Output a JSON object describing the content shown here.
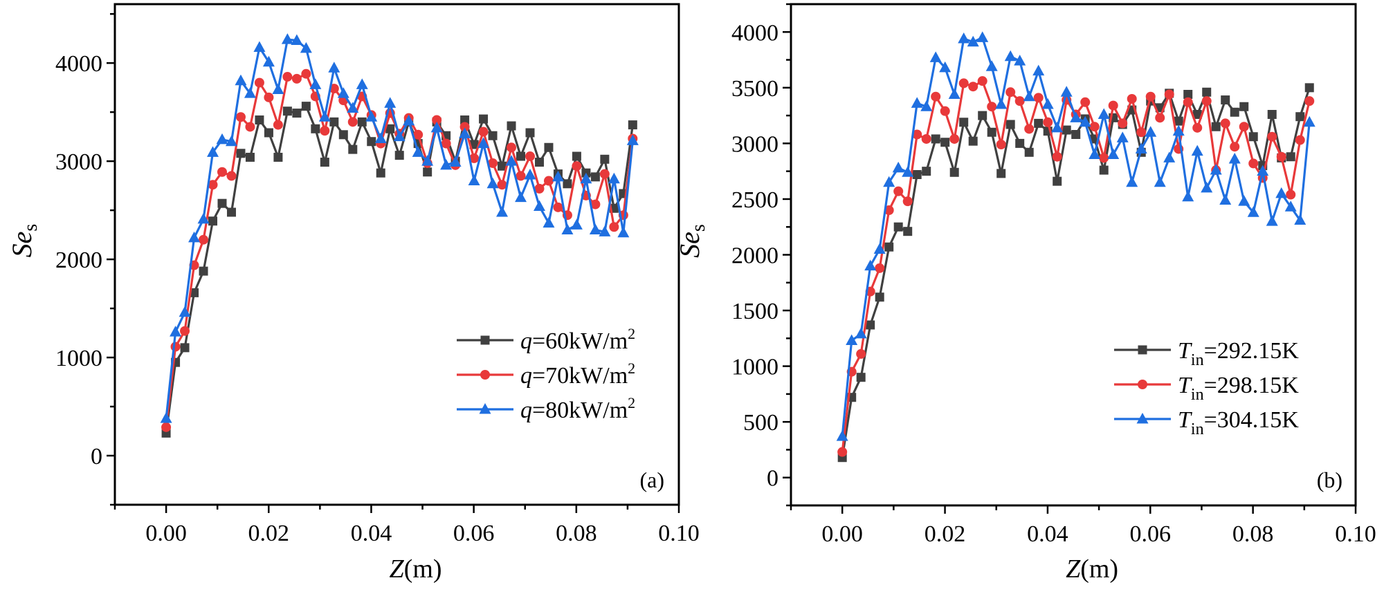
{
  "figure": {
    "panels": [
      "(a)",
      "(b)"
    ]
  },
  "chart_data": [
    {
      "type": "line",
      "panel_label": "(a)",
      "title": "",
      "xlabel": "Z(m)",
      "xlabel_parts": {
        "var": "Z",
        "unit": "(m)"
      },
      "ylabel": "Se_s",
      "ylabel_parts": {
        "var": "Se",
        "sub": "s"
      },
      "xlim": [
        -0.01,
        0.1
      ],
      "ylim": [
        -500,
        4600
      ],
      "xticks": [
        0.0,
        0.02,
        0.04,
        0.06,
        0.08,
        0.1
      ],
      "xtick_labels": [
        "0.00",
        "0.02",
        "0.04",
        "0.06",
        "0.08",
        "0.10"
      ],
      "yticks": [
        0,
        1000,
        2000,
        3000,
        4000
      ],
      "ytick_labels": [
        "0",
        "1000",
        "2000",
        "3000",
        "4000"
      ],
      "grid": false,
      "legend_position": "lower-right",
      "x_step": 0.00182,
      "series": [
        {
          "name": "q=60kW/m2",
          "legend": {
            "var": "q",
            "text": "=60kW/m",
            "sup": "2"
          },
          "color": "#404040",
          "marker": "square",
          "values": [
            230,
            950,
            1100,
            1660,
            1880,
            2390,
            2570,
            2480,
            3080,
            3040,
            3420,
            3290,
            3040,
            3510,
            3490,
            3560,
            3330,
            2990,
            3400,
            3270,
            3120,
            3400,
            3200,
            2880,
            3330,
            3060,
            3400,
            3180,
            2890,
            3400,
            3260,
            3000,
            3420,
            3170,
            3430,
            3260,
            2950,
            3360,
            3050,
            3290,
            2990,
            3140,
            2870,
            2770,
            3050,
            2880,
            2840,
            3020,
            2520,
            2670,
            3370
          ]
        },
        {
          "name": "q=70kW/m2",
          "legend": {
            "var": "q",
            "text": "=70kW/m",
            "sup": "2"
          },
          "color": "#e8393a",
          "marker": "circle",
          "values": [
            290,
            1110,
            1270,
            1940,
            2200,
            2760,
            2890,
            2850,
            3450,
            3350,
            3800,
            3650,
            3370,
            3860,
            3840,
            3890,
            3660,
            3310,
            3740,
            3620,
            3400,
            3660,
            3470,
            3180,
            3490,
            3280,
            3440,
            3270,
            2980,
            3420,
            3180,
            2960,
            3350,
            3030,
            3300,
            2980,
            2760,
            3140,
            2850,
            3050,
            2720,
            2800,
            2530,
            2450,
            2950,
            2650,
            2560,
            2870,
            2330,
            2450,
            3230
          ]
        },
        {
          "name": "q=80kW/m2",
          "legend": {
            "var": "q",
            "text": "=80kW/m",
            "sup": "2"
          },
          "color": "#1f6fe0",
          "marker": "triangle",
          "values": [
            380,
            1260,
            1460,
            2220,
            2410,
            3090,
            3220,
            3200,
            3820,
            3690,
            4160,
            4010,
            3730,
            4240,
            4230,
            4150,
            3780,
            3450,
            3950,
            3690,
            3540,
            3780,
            3450,
            3230,
            3590,
            3250,
            3410,
            3090,
            3000,
            3340,
            2960,
            2990,
            3280,
            2800,
            3180,
            2770,
            2480,
            3000,
            2630,
            2860,
            2540,
            2370,
            2840,
            2300,
            2350,
            2820,
            2300,
            2280,
            2820,
            2270,
            3210
          ]
        }
      ]
    },
    {
      "type": "line",
      "panel_label": "(b)",
      "title": "",
      "xlabel": "Z(m)",
      "xlabel_parts": {
        "var": "Z",
        "unit": "(m)"
      },
      "ylabel": "Se_s",
      "ylabel_parts": {
        "var": "Se",
        "sub": "s"
      },
      "xlim": [
        -0.01,
        0.1
      ],
      "ylim": [
        -250,
        4250
      ],
      "xticks": [
        0.0,
        0.02,
        0.04,
        0.06,
        0.08,
        0.1
      ],
      "xtick_labels": [
        "0.00",
        "0.02",
        "0.04",
        "0.06",
        "0.08",
        "0.10"
      ],
      "yticks": [
        0,
        500,
        1000,
        1500,
        2000,
        2500,
        3000,
        3500,
        4000
      ],
      "ytick_labels": [
        "0",
        "500",
        "1000",
        "1500",
        "2000",
        "2500",
        "3000",
        "3500",
        "4000"
      ],
      "grid": false,
      "legend_position": "lower-right",
      "x_step": 0.00182,
      "series": [
        {
          "name": "T_in=292.15K",
          "legend": {
            "var": "T",
            "sub": "in",
            "text": "=292.15K"
          },
          "color": "#404040",
          "marker": "square",
          "values": [
            180,
            720,
            900,
            1370,
            1620,
            2070,
            2250,
            2210,
            2720,
            2750,
            3040,
            3010,
            2740,
            3190,
            3020,
            3250,
            3100,
            2730,
            3170,
            3000,
            2920,
            3180,
            3110,
            2660,
            3120,
            3080,
            3220,
            3040,
            2760,
            3230,
            3170,
            3300,
            2920,
            3380,
            3320,
            3450,
            3200,
            3440,
            3260,
            3460,
            3150,
            3390,
            3280,
            3330,
            3060,
            2800,
            3260,
            2870,
            2880,
            3240,
            3500
          ]
        },
        {
          "name": "T_in=298.15K",
          "legend": {
            "var": "T",
            "sub": "in",
            "text": "=298.15K"
          },
          "color": "#e8393a",
          "marker": "circle",
          "values": [
            230,
            950,
            1110,
            1670,
            1880,
            2400,
            2570,
            2480,
            3080,
            3040,
            3420,
            3290,
            3040,
            3540,
            3510,
            3560,
            3330,
            2990,
            3460,
            3380,
            3130,
            3410,
            3190,
            2880,
            3390,
            3260,
            3370,
            3150,
            2870,
            3340,
            3180,
            3400,
            3100,
            3420,
            3230,
            3440,
            2950,
            3370,
            3140,
            3380,
            2760,
            3180,
            2970,
            3150,
            2820,
            2690,
            3060,
            2880,
            2540,
            3030,
            3380
          ]
        },
        {
          "name": "T_in=304.15K",
          "legend": {
            "var": "T",
            "sub": "in",
            "text": "=304.15K"
          },
          "color": "#1f6fe0",
          "marker": "triangle",
          "values": [
            370,
            1230,
            1290,
            1900,
            2050,
            2650,
            2780,
            2740,
            3360,
            3330,
            3770,
            3680,
            3440,
            3940,
            3910,
            3950,
            3690,
            3350,
            3780,
            3740,
            3420,
            3650,
            3350,
            3140,
            3460,
            3230,
            3190,
            2900,
            3260,
            2900,
            3050,
            2650,
            2950,
            3100,
            2650,
            2870,
            3110,
            2520,
            2930,
            2600,
            2760,
            2490,
            2860,
            2480,
            2380,
            2750,
            2300,
            2550,
            2430,
            2310,
            3190
          ]
        }
      ]
    }
  ]
}
